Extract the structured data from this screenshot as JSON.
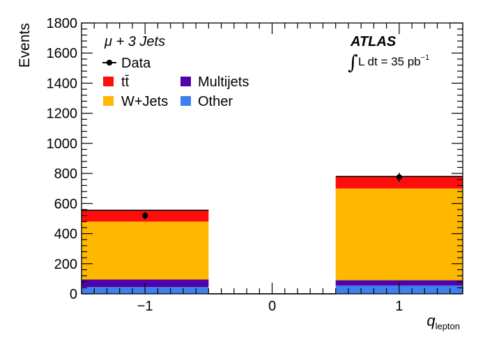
{
  "chart_data": {
    "type": "bar",
    "stacked": true,
    "title": "",
    "xlabel": "q",
    "xlabel_sub": "lepton",
    "ylabel": "Events",
    "xlim": [
      -1.5,
      1.5
    ],
    "ylim": [
      0,
      1800
    ],
    "xticks": [
      -1,
      0,
      1
    ],
    "xtick_labels": [
      "−1",
      "0",
      "1"
    ],
    "yticks": [
      0,
      200,
      400,
      600,
      800,
      1000,
      1200,
      1400,
      1600,
      1800
    ],
    "bins": [
      [
        -1.5,
        -0.5
      ],
      [
        -0.5,
        0.5
      ],
      [
        0.5,
        1.5
      ]
    ],
    "series": [
      {
        "name": "Other",
        "color": "#3f7ff0",
        "values": [
          45,
          0,
          55
        ]
      },
      {
        "name": "Multijets",
        "color": "#5200a8",
        "values": [
          50,
          0,
          35
        ]
      },
      {
        "name": "W+Jets",
        "color": "#ffb800",
        "values": [
          385,
          0,
          610
        ]
      },
      {
        "name": "tt̄",
        "color": "#ff0d0d",
        "values": [
          75,
          0,
          80
        ]
      }
    ],
    "data_points": {
      "name": "Data",
      "x": [
        -1,
        1
      ],
      "y": [
        520,
        775
      ],
      "yerr": [
        23,
        28
      ]
    },
    "annotations": {
      "channel": "μ + 3 Jets",
      "experiment": "ATLAS",
      "lumi_integral": "∫",
      "lumi_text": "L dt = 35 pb",
      "lumi_sup": "−1"
    },
    "legend": [
      "Data",
      "tt̄",
      "Multijets",
      "W+Jets",
      "Other"
    ]
  }
}
